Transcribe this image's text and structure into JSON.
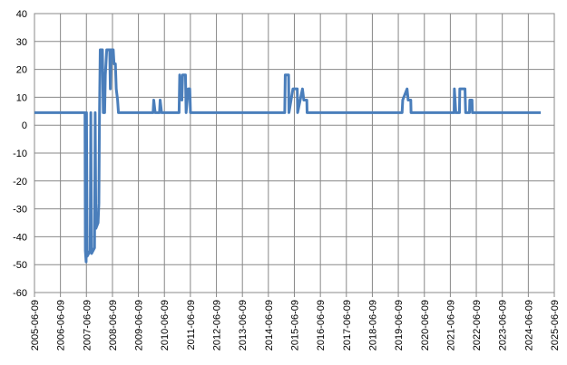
{
  "chart_data": {
    "type": "line",
    "color": "#4a7ebb",
    "grid": true,
    "ylim": [
      -60,
      40
    ],
    "yticks": [
      -60,
      -50,
      -40,
      -30,
      -20,
      -10,
      0,
      10,
      20,
      30,
      40
    ],
    "xlim": [
      "2005-06-09",
      "2025-06-09"
    ],
    "xticks": [
      "2005-06-09",
      "2006-06-09",
      "2007-06-09",
      "2008-06-09",
      "2009-06-09",
      "2010-06-09",
      "2011-06-09",
      "2012-06-09",
      "2013-06-09",
      "2014-06-09",
      "2015-06-09",
      "2016-06-09",
      "2017-06-09",
      "2018-06-09",
      "2019-06-09",
      "2020-06-09",
      "2021-06-09",
      "2022-06-09",
      "2023-06-09",
      "2024-06-09",
      "2025-06-09"
    ],
    "x": [
      "2005-06-09",
      "2007-05-20",
      "2007-05-25",
      "2007-06-05",
      "2007-06-10",
      "2007-06-20",
      "2007-08-01",
      "2007-08-10",
      "2007-08-20",
      "2007-10-01",
      "2007-10-10",
      "2007-10-20",
      "2007-11-20",
      "2007-12-01",
      "2007-12-10",
      "2007-12-20",
      "2008-01-20",
      "2008-02-01",
      "2008-02-20",
      "2008-03-01",
      "2008-03-20",
      "2008-05-01",
      "2008-05-10",
      "2008-05-20",
      "2008-06-20",
      "2008-07-01",
      "2008-07-20",
      "2008-08-01",
      "2008-08-20",
      "2008-09-01",
      "2010-01-01",
      "2010-01-10",
      "2010-01-30",
      "2010-04-01",
      "2010-04-10",
      "2010-04-30",
      "2011-01-01",
      "2011-01-10",
      "2011-02-10",
      "2011-02-20",
      "2011-04-01",
      "2011-04-10",
      "2011-05-10",
      "2011-06-01",
      "2011-06-10",
      "2015-01-25",
      "2015-02-01",
      "2015-03-20",
      "2015-03-25",
      "2015-05-20",
      "2015-07-20",
      "2015-07-25",
      "2015-10-01",
      "2015-10-20",
      "2015-12-01",
      "2015-12-05",
      "2019-08-01",
      "2019-08-10",
      "2019-10-10",
      "2019-10-25",
      "2019-12-01",
      "2019-12-05",
      "2021-08-01",
      "2021-08-05",
      "2021-08-25",
      "2021-10-15",
      "2021-10-20",
      "2022-01-01",
      "2022-01-10",
      "2022-03-05",
      "2022-03-10",
      "2022-04-10",
      "2022-04-15",
      "2024-12-01"
    ],
    "values": [
      4.5,
      4.5,
      -45,
      -49,
      4.5,
      -47,
      -45,
      4.5,
      -46,
      -44,
      4.5,
      -37,
      -35,
      -28,
      4.5,
      27,
      27,
      4.5,
      4.5,
      18,
      27,
      27,
      13,
      27,
      27,
      22,
      22,
      13,
      9,
      4.5,
      4.5,
      9,
      4.5,
      4.5,
      9,
      4.5,
      4.5,
      18,
      9,
      18,
      18,
      4.5,
      13,
      13,
      4.5,
      4.5,
      18,
      18,
      4.5,
      13,
      13,
      4.5,
      13,
      9,
      9,
      4.5,
      4.5,
      9,
      13,
      9,
      9,
      4.5,
      4.5,
      13,
      4.5,
      4.5,
      13,
      13,
      4.5,
      4.5,
      9,
      9,
      4.5,
      4.5
    ]
  }
}
